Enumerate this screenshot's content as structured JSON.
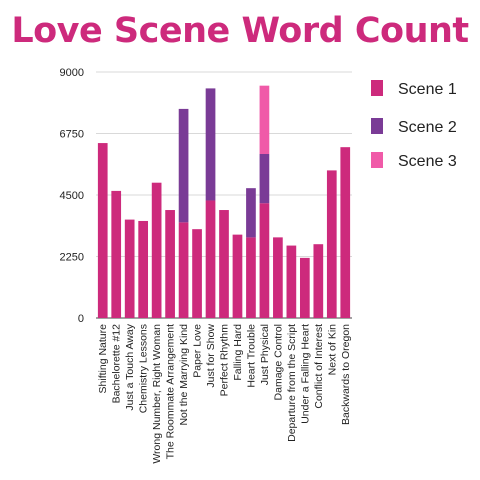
{
  "chart_data": {
    "type": "bar",
    "stacked": true,
    "title": "Love Scene Word Count",
    "categories": [
      "Shifting Nature",
      "Bachelorette #12",
      "Just a Touch Away",
      "Chemistry Lessons",
      "Wrong Number, Right Woman",
      "The Roommate Arrangement",
      "Not the Marrying Kind",
      "Paper Love",
      "Just for Show",
      "Perfect Rhythm",
      "Falling Hard",
      "Heart Trouble",
      "Just Physical",
      "Damage Control",
      "Departure from the Script",
      "Under a Falling Heart",
      "Conflict of Interest",
      "Next of Kin",
      "Backwards to Oregon"
    ],
    "series": [
      {
        "name": "Scene 1",
        "color": "#cd2a7c",
        "values": [
          6400,
          4650,
          3600,
          3550,
          4950,
          3950,
          3500,
          3250,
          4300,
          3950,
          3050,
          2950,
          4200,
          2950,
          2650,
          2200,
          2700,
          5400,
          6250
        ]
      },
      {
        "name": "Scene 2",
        "color": "#7a3b96",
        "values": [
          0,
          0,
          0,
          0,
          0,
          0,
          4150,
          0,
          4100,
          0,
          0,
          1800,
          1800,
          0,
          0,
          0,
          0,
          0,
          0
        ]
      },
      {
        "name": "Scene 3",
        "color": "#f05aa8",
        "values": [
          0,
          0,
          0,
          0,
          0,
          0,
          0,
          0,
          0,
          0,
          0,
          0,
          2500,
          0,
          0,
          0,
          0,
          0,
          0
        ]
      }
    ],
    "yticks": [
      "0",
      "2250",
      "4500",
      "6750",
      "9000"
    ],
    "ylim": [
      0,
      9000
    ],
    "grid": true,
    "legend_position": "right"
  }
}
